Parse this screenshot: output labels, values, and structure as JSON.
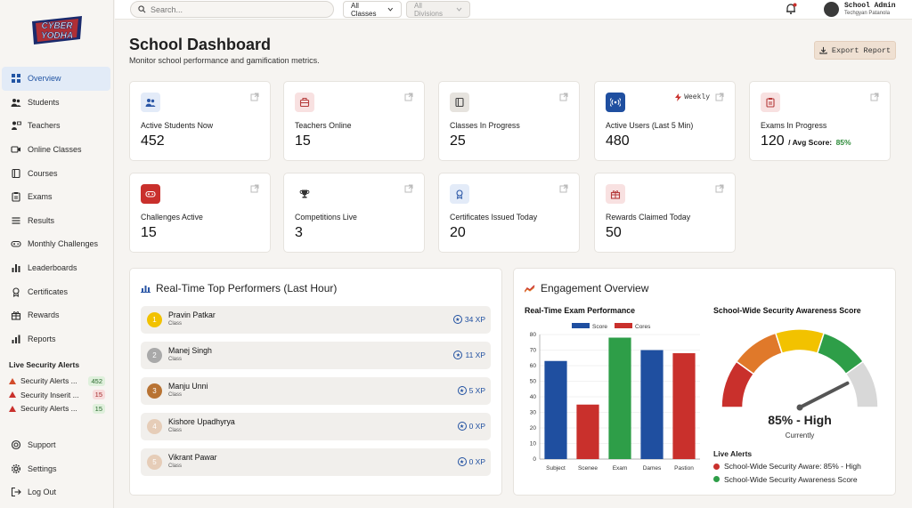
{
  "app": {
    "logo_text": "CYBER YODHA"
  },
  "topbar": {
    "search_placeholder": "Search...",
    "classes_label": "All Classes",
    "divisions_label": "All Divisions",
    "user_name": "School Admin",
    "user_school": "Techgyan Patanola"
  },
  "sidebar": {
    "items": [
      {
        "label": "Overview",
        "icon": "grid-icon",
        "active": true
      },
      {
        "label": "Students",
        "icon": "users-icon"
      },
      {
        "label": "Teachers",
        "icon": "teacher-icon"
      },
      {
        "label": "Online Classes",
        "icon": "video-icon"
      },
      {
        "label": "Courses",
        "icon": "book-icon"
      },
      {
        "label": "Exams",
        "icon": "clipboard-icon"
      },
      {
        "label": "Results",
        "icon": "list-icon"
      },
      {
        "label": "Monthly Challenges",
        "icon": "gamepad-icon"
      },
      {
        "label": "Leaderboards",
        "icon": "bar-chart-icon"
      },
      {
        "label": "Certificates",
        "icon": "award-icon"
      },
      {
        "label": "Rewards",
        "icon": "gift-icon"
      },
      {
        "label": "Reports",
        "icon": "report-icon"
      }
    ],
    "alerts_title": "Live Security Alerts",
    "alerts": [
      {
        "label": "Security Alerts ...",
        "count": "452",
        "color": "#d24b2a"
      },
      {
        "label": "Security Inserit ...",
        "count": "15",
        "color": "#c9302c"
      },
      {
        "label": "Security Alerts ...",
        "count": "15",
        "color": "#c9302c"
      }
    ],
    "bottom": [
      {
        "label": "Support",
        "icon": "support-icon"
      },
      {
        "label": "Settings",
        "icon": "gear-icon"
      },
      {
        "label": "Log Out",
        "icon": "logout-icon"
      }
    ]
  },
  "header": {
    "title": "School Dashboard",
    "subtitle": "Monitor school performance and gamification metrics.",
    "export_label": "Export Report"
  },
  "stats": [
    {
      "label": "Active Students Now",
      "value": "452",
      "icon": "users-icon",
      "icon_bg": "#e3ebf8",
      "icon_color": "#2a56a6"
    },
    {
      "label": "Teachers Online",
      "value": "15",
      "icon": "briefcase-icon",
      "icon_bg": "#f8e1e1",
      "icon_color": "#b53a3a"
    },
    {
      "label": "Classes In Progress",
      "value": "25",
      "icon": "book-icon",
      "icon_bg": "#e6e3de",
      "icon_color": "#444"
    },
    {
      "label": "Active Users (Last 5 Min)",
      "value": "480",
      "icon": "signal-icon",
      "icon_bg": "#1f4fa0",
      "icon_color": "#ffffff",
      "tag": "Weekly"
    },
    {
      "label": "Exams In Progress",
      "value": "120",
      "suffix": "/ Avg Score:",
      "score": "85%",
      "icon": "clipboard-icon",
      "icon_bg": "#f8e1e1",
      "icon_color": "#b53a3a"
    },
    {
      "label": "Challenges Active",
      "value": "15",
      "icon": "gamepad-icon",
      "icon_bg": "#c9302c",
      "icon_color": "#ffffff"
    },
    {
      "label": "Competitions Live",
      "value": "3",
      "icon": "trophy-icon",
      "icon_bg": "#ffffff",
      "icon_color": "#333"
    },
    {
      "label": "Certificates Issued Today",
      "value": "20",
      "icon": "award-icon",
      "icon_bg": "#e3ebf8",
      "icon_color": "#2a56a6"
    },
    {
      "label": "Rewards Claimed Today",
      "value": "50",
      "icon": "gift-icon",
      "icon_bg": "#f8e1e1",
      "icon_color": "#b53a3a"
    }
  ],
  "performers": {
    "title": "Real-Time Top Performers (Last Hour)",
    "rows": [
      {
        "rank": "1",
        "name": "Pravin Patkar",
        "cls": "Class",
        "xp": "34 XP",
        "color": "#f2c200"
      },
      {
        "rank": "2",
        "name": "Manej Singh",
        "cls": "Class",
        "xp": "11 XP",
        "color": "#a9a9a9"
      },
      {
        "rank": "3",
        "name": "Manju Unni",
        "cls": "Class",
        "xp": "5 XP",
        "color": "#b87333"
      },
      {
        "rank": "4",
        "name": "Kishore Upadhyrya",
        "cls": "Class",
        "xp": "0 XP",
        "color": "#e6cdb8"
      },
      {
        "rank": "5",
        "name": "Vikrant Pawar",
        "cls": "Class",
        "xp": "0 XP",
        "color": "#e6cdb8"
      }
    ]
  },
  "engagement": {
    "title": "Engagement Overview",
    "exam_title": "Real-Time Exam Performance",
    "gauge_title": "School-Wide Security Awareness Score",
    "gauge_value": "85% - High",
    "gauge_sub": "Currently",
    "live_alerts_title": "Live Alerts",
    "live_alerts": [
      {
        "label": "School-Wide Security Aware: 85% - High",
        "color": "#c9302c"
      },
      {
        "label": "School-Wide Security Awareness Score",
        "color": "#2e9e48"
      }
    ]
  },
  "chart_data": {
    "type": "bar",
    "categories": [
      "Subject",
      "Sceneе",
      "Exam",
      "Dames",
      "Pastion"
    ],
    "values": [
      63,
      35,
      78,
      70,
      68
    ],
    "colors": [
      "#1f4fa0",
      "#c9302c",
      "#2e9e48",
      "#1f4fa0",
      "#c9302c"
    ],
    "legend": [
      {
        "name": "Score",
        "color": "#1f4fa0"
      },
      {
        "name": "Cores",
        "color": "#c9302c"
      }
    ],
    "legend_position": "top",
    "ylim": [
      0,
      80
    ],
    "yticks": [
      0,
      10,
      20,
      30,
      40,
      50,
      60,
      70,
      80
    ],
    "grid": true
  },
  "gauge_data": {
    "value": 85,
    "max": 100,
    "segments": [
      "#c9302c",
      "#e0792a",
      "#f2c200",
      "#2e9e48",
      "#d8d8d8"
    ]
  }
}
